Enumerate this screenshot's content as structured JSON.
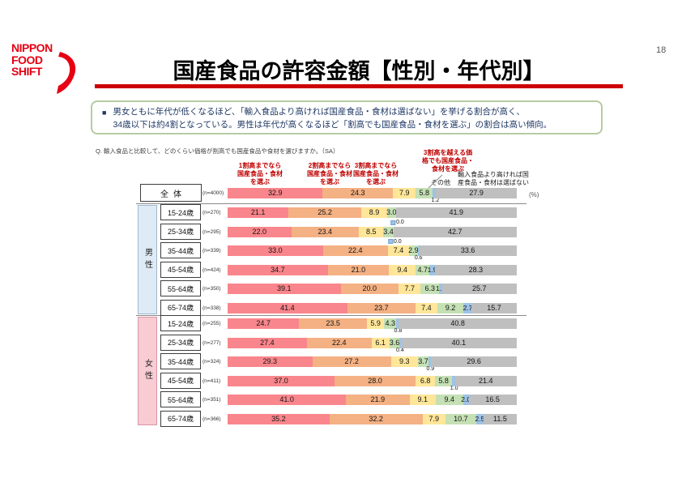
{
  "page_number": "18",
  "logo": {
    "line1": "NIPPON",
    "line2": "FOOD",
    "line3": "SHIFT"
  },
  "title": "国産食品の許容金額【性別・年代別】",
  "summary": {
    "bullet": "■",
    "line1": "男女ともに年代が低くなるほど、「輸入食品より高ければ国産食品・食材は選ばない」を挙げる割合が高く、",
    "line2": "34歳以下は約4割となっている。男性は年代が高くなるほど「割高でも国産食品・食材を選ぶ」の割合は高い傾向。"
  },
  "question": "Q. 輸入食品と比較して、どのくらい価格が割高でも国産食品や食材を選びますか。（SA）",
  "unit_label": "(%)",
  "chart_data": {
    "type": "bar",
    "stacked": true,
    "orientation": "horizontal",
    "value_unit": "%",
    "axis_range": [
      0,
      100
    ],
    "legend_position": "top",
    "series": [
      {
        "name": "1割高までなら国産食品・食材を選ぶ",
        "color": "#F9868C",
        "values": [
          32.9,
          21.1,
          22.0,
          33.0,
          34.7,
          39.1,
          41.4,
          24.7,
          27.4,
          29.3,
          37.0,
          41.0,
          35.2
        ]
      },
      {
        "name": "2割高までなら国産食品・食材を選ぶ",
        "color": "#F4B183",
        "values": [
          24.3,
          25.2,
          23.4,
          22.4,
          21.0,
          20.0,
          23.7,
          23.5,
          22.4,
          27.2,
          28.0,
          21.9,
          32.2
        ]
      },
      {
        "name": "3割高までなら国産食品・食材を選ぶ",
        "color": "#FFE699",
        "values": [
          7.9,
          8.9,
          8.5,
          7.4,
          9.4,
          7.7,
          7.4,
          5.9,
          6.1,
          9.3,
          6.8,
          9.1,
          7.9
        ]
      },
      {
        "name": "3割高を越える価格でも国産食品・食材を選ぶ",
        "color": "#C5E0B4",
        "values": [
          5.8,
          3.0,
          3.4,
          2.9,
          4.7,
          6.3,
          9.2,
          4.3,
          3.6,
          3.7,
          5.8,
          9.4,
          10.7
        ]
      },
      {
        "name": "その他",
        "color": "#9DC3E6",
        "values": [
          1.2,
          0.0,
          0.0,
          0.6,
          1.9,
          1.1,
          2.7,
          0.8,
          0.4,
          0.9,
          1.0,
          2.0,
          2.5
        ]
      },
      {
        "name": "輸入食品より高ければ国産食品・食材は選ばない",
        "color": "#BFBFBF",
        "values": [
          27.9,
          41.9,
          42.7,
          33.6,
          28.3,
          25.7,
          15.7,
          40.8,
          40.1,
          29.6,
          21.4,
          16.5,
          11.5
        ]
      }
    ],
    "rows": [
      {
        "group": "",
        "label": "全体",
        "n_label": "(n=4000)",
        "other_label_style": "subscript"
      },
      {
        "group": "男性",
        "label": "15-24歳",
        "n_label": "(n=270)",
        "other_label_style": "callout"
      },
      {
        "group": "男性",
        "label": "25-34歳",
        "n_label": "(n=295)",
        "other_label_style": "callout"
      },
      {
        "group": "男性",
        "label": "35-44歳",
        "n_label": "(n=339)",
        "other_label_style": "subscript"
      },
      {
        "group": "男性",
        "label": "45-54歳",
        "n_label": "(n=424)",
        "other_label_style": "inline"
      },
      {
        "group": "男性",
        "label": "55-64歳",
        "n_label": "(n=350)",
        "other_label_style": "inline"
      },
      {
        "group": "男性",
        "label": "65-74歳",
        "n_label": "(n=338)",
        "other_label_style": "inline"
      },
      {
        "group": "女性",
        "label": "15-24歳",
        "n_label": "(n=255)",
        "other_label_style": "subscript"
      },
      {
        "group": "女性",
        "label": "25-34歳",
        "n_label": "(n=277)",
        "other_label_style": "subscript"
      },
      {
        "group": "女性",
        "label": "35-44歳",
        "n_label": "(n=324)",
        "other_label_style": "subscript"
      },
      {
        "group": "女性",
        "label": "45-54歳",
        "n_label": "(n=411)",
        "other_label_style": "subscript"
      },
      {
        "group": "女性",
        "label": "55-64歳",
        "n_label": "(n=351)",
        "other_label_style": "inline"
      },
      {
        "group": "女性",
        "label": "65-74歳",
        "n_label": "(n=366)",
        "other_label_style": "inline"
      }
    ],
    "groups": [
      {
        "label": "男性",
        "color": "#DEEBF7"
      },
      {
        "label": "女性",
        "color": "#F9CBD2"
      }
    ]
  }
}
